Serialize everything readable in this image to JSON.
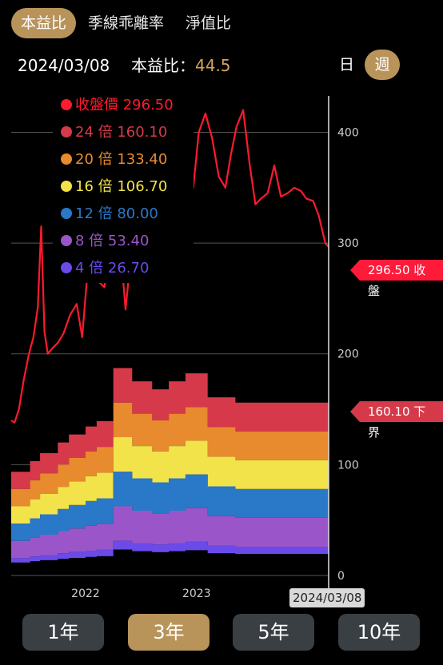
{
  "tabs": [
    {
      "label": "本益比",
      "active": true
    },
    {
      "label": "季線乖離率",
      "active": false
    },
    {
      "label": "淨值比",
      "active": false
    }
  ],
  "header": {
    "date": "2024/03/08",
    "metric_label": "本益比：",
    "metric_value": "44.5"
  },
  "period": [
    {
      "label": "日",
      "active": false
    },
    {
      "label": "週",
      "active": true
    }
  ],
  "legend": [
    {
      "label": "收盤價 296.50",
      "color": "#ff1a2e"
    },
    {
      "label": "24 倍 160.10",
      "color": "#d63a4a"
    },
    {
      "label": "20 倍 133.40",
      "color": "#e88a2e"
    },
    {
      "label": "16 倍 106.70",
      "color": "#f2e34a"
    },
    {
      "label": "12 倍 80.00",
      "color": "#2a78c8"
    },
    {
      "label": "8 倍 53.40",
      "color": "#9a56c8"
    },
    {
      "label": "4 倍 26.70",
      "color": "#6a4ae8"
    }
  ],
  "price_tag": "296.50 收盤",
  "lower_tag": "160.10 下界",
  "crosshair_date": "2024/03/08",
  "ranges": [
    {
      "label": "1年",
      "active": false
    },
    {
      "label": "3年",
      "active": true
    },
    {
      "label": "5年",
      "active": false
    },
    {
      "label": "10年",
      "active": false
    }
  ],
  "chart_data": {
    "type": "area",
    "title": "",
    "y_ticks": [
      "0",
      "100",
      "200",
      "300",
      "400"
    ],
    "ylim": [
      0,
      440
    ],
    "x_ticks": [
      "2022",
      "2023",
      "2024"
    ],
    "x_tick_positions": [
      2022.0,
      2023.0,
      2024.0
    ],
    "xlim": [
      2021.33,
      2024.19
    ],
    "eps_steps": {
      "x": [
        2021.33,
        2021.5,
        2021.59,
        2021.75,
        2021.85,
        2022.0,
        2022.1,
        2022.25,
        2022.42,
        2022.6,
        2022.75,
        2022.9,
        2023.1,
        2023.35,
        2024.19
      ],
      "eps": [
        3.9,
        4.3,
        4.6,
        5.0,
        5.3,
        5.6,
        5.8,
        7.8,
        7.3,
        7.0,
        7.3,
        7.6,
        6.7,
        6.5,
        6.67
      ]
    },
    "multiples": [
      24,
      20,
      16,
      12,
      8,
      4
    ],
    "series_colors": [
      "#d63a4a",
      "#e88a2e",
      "#f2e34a",
      "#2a78c8",
      "#9a56c8",
      "#6a4ae8"
    ],
    "price": {
      "name": "收盤價",
      "color": "#ff1a2e",
      "x": [
        2021.33,
        2021.36,
        2021.4,
        2021.44,
        2021.49,
        2021.53,
        2021.57,
        2021.6,
        2021.63,
        2021.66,
        2021.7,
        2021.75,
        2021.8,
        2021.86,
        2021.92,
        2021.97,
        2022.03,
        2022.08,
        2022.12,
        2022.17,
        2022.21,
        2022.26,
        2022.29,
        2022.32,
        2022.36,
        2022.4,
        2022.45,
        2022.5,
        2022.55,
        2022.62,
        2022.66,
        2022.7,
        2022.76,
        2022.82,
        2022.88,
        2022.93,
        2022.97,
        2023.02,
        2023.08,
        2023.14,
        2023.2,
        2023.26,
        2023.31,
        2023.36,
        2023.42,
        2023.48,
        2023.53,
        2023.58,
        2023.64,
        2023.7,
        2023.76,
        2023.82,
        2023.88,
        2023.94,
        2023.99,
        2024.05,
        2024.1,
        2024.16,
        2024.19
      ],
      "y": [
        140,
        138,
        150,
        175,
        200,
        215,
        242,
        315,
        220,
        200,
        205,
        210,
        218,
        235,
        245,
        215,
        290,
        300,
        265,
        260,
        295,
        310,
        278,
        290,
        240,
        280,
        275,
        270,
        290,
        300,
        290,
        335,
        330,
        308,
        360,
        370,
        350,
        400,
        417,
        395,
        360,
        350,
        380,
        405,
        420,
        370,
        335,
        340,
        345,
        370,
        342,
        345,
        350,
        347,
        340,
        338,
        325,
        300,
        296.5
      ]
    }
  }
}
